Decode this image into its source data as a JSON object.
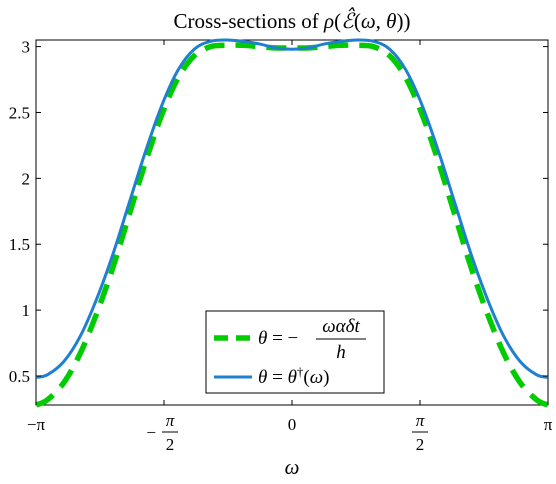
{
  "chart_data": {
    "type": "line",
    "title": "Cross-sections of ρ(ℰ̂(ω, θ))",
    "xlabel": "ω",
    "ylabel": "",
    "xlim": [
      -3.14159,
      3.14159
    ],
    "ylim": [
      0.28,
      3.05
    ],
    "x_ticks": [
      {
        "value": -3.14159,
        "label": "−π"
      },
      {
        "value": -1.5708,
        "label": "−π/2"
      },
      {
        "value": 0,
        "label": "0"
      },
      {
        "value": 1.5708,
        "label": "π/2"
      },
      {
        "value": 3.14159,
        "label": "π"
      }
    ],
    "y_ticks": [
      {
        "value": 0.5,
        "label": "0.5"
      },
      {
        "value": 1,
        "label": "1"
      },
      {
        "value": 1.5,
        "label": "1.5"
      },
      {
        "value": 2,
        "label": "2"
      },
      {
        "value": 2.5,
        "label": "2.5"
      },
      {
        "value": 3,
        "label": "3"
      }
    ],
    "grid": false,
    "legend_position": "bottom-center",
    "series": [
      {
        "name": "θ = −ωαδt/h",
        "color": "#00cc00",
        "style": "dashed",
        "x": [
          -3.14,
          -3.0,
          -2.8,
          -2.6,
          -2.4,
          -2.2,
          -2.0,
          -1.8,
          -1.6,
          -1.4,
          -1.2,
          -1.0,
          -0.8,
          -0.6,
          -0.4,
          -0.2,
          0.0,
          0.2,
          0.4,
          0.6,
          0.8,
          1.0,
          1.2,
          1.4,
          1.6,
          1.8,
          2.0,
          2.2,
          2.4,
          2.6,
          2.8,
          3.0,
          3.14
        ],
        "y": [
          0.28,
          0.32,
          0.45,
          0.67,
          0.97,
          1.32,
          1.72,
          2.12,
          2.48,
          2.76,
          2.93,
          3.0,
          3.01,
          3.01,
          3.0,
          2.99,
          2.99,
          2.99,
          3.0,
          3.01,
          3.01,
          3.0,
          2.93,
          2.76,
          2.48,
          2.12,
          1.72,
          1.32,
          0.97,
          0.67,
          0.45,
          0.32,
          0.28
        ]
      },
      {
        "name": "θ = θ†(ω)",
        "color": "#1f7fd0",
        "style": "solid",
        "x": [
          -3.14,
          -3.0,
          -2.8,
          -2.6,
          -2.4,
          -2.2,
          -2.0,
          -1.8,
          -1.6,
          -1.4,
          -1.2,
          -1.0,
          -0.8,
          -0.6,
          -0.4,
          -0.2,
          0.0,
          0.2,
          0.4,
          0.6,
          0.8,
          1.0,
          1.2,
          1.4,
          1.6,
          1.8,
          2.0,
          2.2,
          2.4,
          2.6,
          2.8,
          3.0,
          3.14
        ],
        "y": [
          0.49,
          0.51,
          0.61,
          0.8,
          1.08,
          1.42,
          1.81,
          2.2,
          2.55,
          2.82,
          2.98,
          3.04,
          3.05,
          3.04,
          3.02,
          2.99,
          2.98,
          2.99,
          3.02,
          3.04,
          3.05,
          3.04,
          2.98,
          2.82,
          2.55,
          2.2,
          1.81,
          1.42,
          1.08,
          0.8,
          0.61,
          0.51,
          0.49
        ]
      }
    ]
  }
}
